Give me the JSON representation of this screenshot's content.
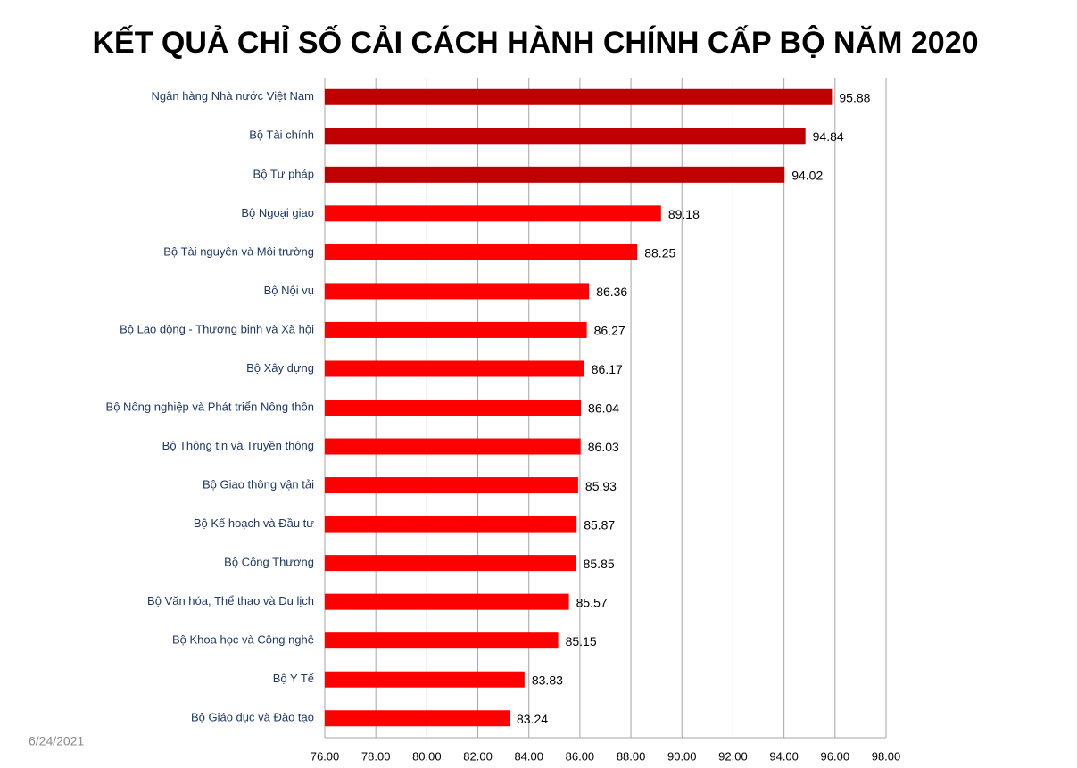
{
  "chart_data": {
    "type": "hbar",
    "title": "KẾT QUẢ CHỈ SỐ CẢI CÁCH HÀNH CHÍNH CẤP BỘ NĂM 2020",
    "categories": [
      "Ngân hàng Nhà nước Việt Nam",
      "Bộ Tài chính",
      "Bộ Tư pháp",
      "Bộ Ngoại giao",
      "Bộ Tài nguyên và Môi trường",
      "Bộ Nội vụ",
      "Bộ Lao động - Thương binh và Xã hội",
      "Bộ Xây dựng",
      "Bộ Nông nghiệp và Phát triển Nông thôn",
      "Bộ Thông tin và Truyền thông",
      "Bộ Giao thông vận tải",
      "Bộ Kế hoạch và Đầu tư",
      "Bộ Công Thương",
      "Bộ Văn hóa, Thể thao và Du lịch",
      "Bộ Khoa học và Công nghệ",
      "Bộ Y Tế",
      "Bộ Giáo dục và Đào tạo"
    ],
    "values": [
      95.88,
      94.84,
      94.02,
      89.18,
      88.25,
      86.36,
      86.27,
      86.17,
      86.04,
      86.03,
      85.93,
      85.87,
      85.85,
      85.57,
      85.15,
      83.83,
      83.24
    ],
    "colors": [
      "#c00000",
      "#c00000",
      "#c00000",
      "#ff0000",
      "#ff0000",
      "#ff0000",
      "#ff0000",
      "#ff0000",
      "#ff0000",
      "#ff0000",
      "#ff0000",
      "#ff0000",
      "#ff0000",
      "#ff0000",
      "#ff0000",
      "#ff0000",
      "#ff0000"
    ],
    "xlim": [
      76,
      98
    ],
    "xticks": [
      {
        "value": 76,
        "label": "76.00"
      },
      {
        "value": 78,
        "label": "78.00"
      },
      {
        "value": 80,
        "label": "80.00"
      },
      {
        "value": 82,
        "label": "82.00"
      },
      {
        "value": 84,
        "label": "84.00"
      },
      {
        "value": 86,
        "label": "86.00"
      },
      {
        "value": 88,
        "label": "88.00"
      },
      {
        "value": 90,
        "label": "90.00"
      },
      {
        "value": 92,
        "label": "92.00"
      },
      {
        "value": 94,
        "label": "94.00"
      },
      {
        "value": 96,
        "label": "96.00"
      },
      {
        "value": 98,
        "label": "98.00"
      }
    ],
    "grid": true
  },
  "footer": {
    "date": "6/24/2021"
  }
}
